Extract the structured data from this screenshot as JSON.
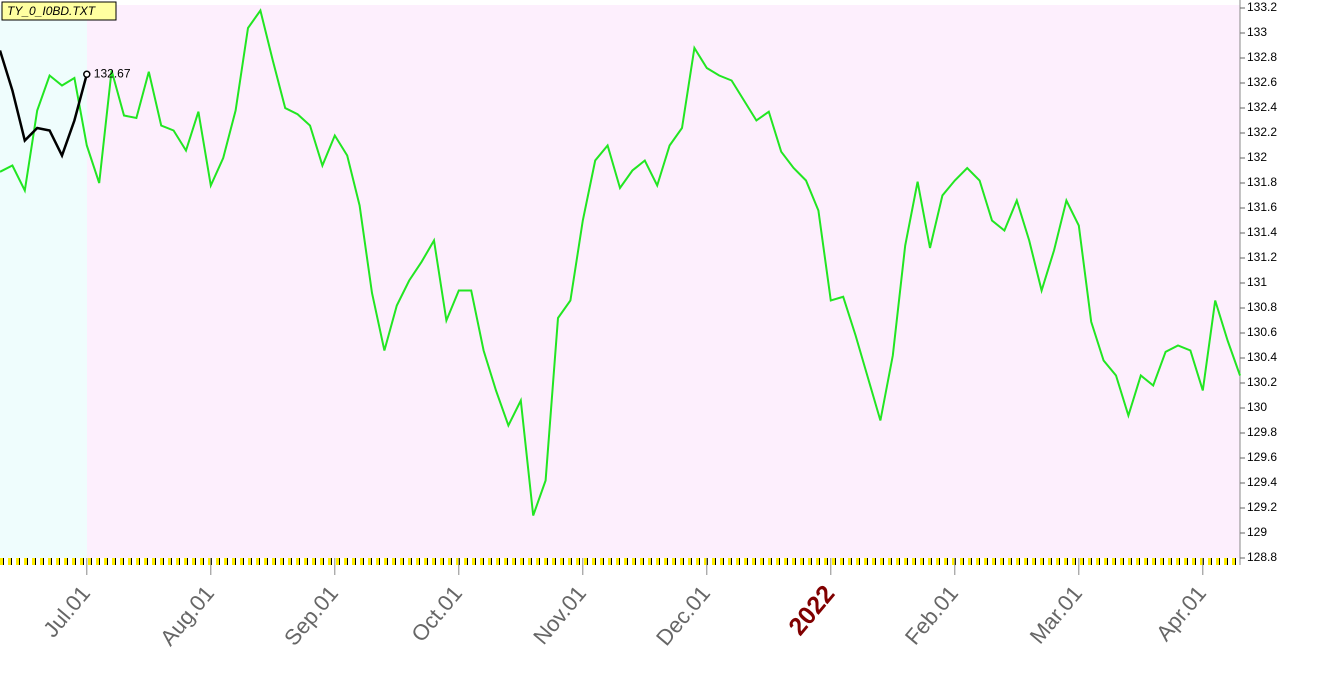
{
  "chart_data": {
    "type": "line",
    "title": "TY_0_I0BD.TXT",
    "categories": [
      null,
      null,
      null,
      null,
      null,
      null,
      null,
      "Jul.01",
      null,
      null,
      null,
      null,
      null,
      null,
      null,
      null,
      null,
      "Aug.01",
      null,
      null,
      null,
      null,
      null,
      null,
      null,
      null,
      null,
      "Sep.01",
      null,
      null,
      null,
      null,
      null,
      null,
      null,
      null,
      null,
      "Oct.01",
      null,
      null,
      null,
      null,
      null,
      null,
      null,
      null,
      null,
      "Nov.01",
      null,
      null,
      null,
      null,
      null,
      null,
      null,
      null,
      null,
      "Dec.01",
      null,
      null,
      null,
      null,
      null,
      null,
      null,
      null,
      null,
      "2022",
      null,
      null,
      null,
      null,
      null,
      null,
      null,
      null,
      null,
      "Feb.01",
      null,
      null,
      null,
      null,
      null,
      null,
      null,
      null,
      null,
      "Mar.01",
      null,
      null,
      null,
      null,
      null,
      null,
      null,
      null,
      null,
      "Apr.01",
      null,
      null,
      null
    ],
    "series": [
      {
        "name": "TY",
        "color": "#22e622",
        "values": [
          131.89,
          131.94,
          131.74,
          132.38,
          132.66,
          132.58,
          132.64,
          132.1,
          131.8,
          132.7,
          132.34,
          132.32,
          132.69,
          132.26,
          132.22,
          132.06,
          132.37,
          131.78,
          132.0,
          132.38,
          133.04,
          133.18,
          132.78,
          132.4,
          132.35,
          132.26,
          131.94,
          132.18,
          132.02,
          131.62,
          130.92,
          130.46,
          130.82,
          131.02,
          131.17,
          131.34,
          130.7,
          130.94,
          130.94,
          130.46,
          130.14,
          129.86,
          130.06,
          129.14,
          129.42,
          130.72,
          130.86,
          131.5,
          131.98,
          132.1,
          131.76,
          131.9,
          131.98,
          131.78,
          132.1,
          132.24,
          132.88,
          132.72,
          132.66,
          132.62,
          132.46,
          132.3,
          132.37,
          132.05,
          131.92,
          131.82,
          131.58,
          130.86,
          130.89,
          130.58,
          130.24,
          129.9,
          130.42,
          131.3,
          131.81,
          131.28,
          131.7,
          131.82,
          131.92,
          131.82,
          131.5,
          131.42,
          131.66,
          131.34,
          130.94,
          131.26,
          131.66,
          131.46,
          130.69,
          130.38,
          130.26,
          129.94,
          130.26,
          130.18,
          130.45,
          130.5,
          130.46,
          130.14,
          130.86,
          130.54,
          130.26
        ]
      },
      {
        "name": "TY_0_I0BD",
        "color": "#000000",
        "values": [
          132.86,
          132.54,
          132.14,
          132.24,
          132.22,
          132.02,
          132.3,
          132.67,
          null,
          null,
          null,
          null,
          null,
          null,
          null,
          null,
          null,
          null,
          null,
          null,
          null,
          null,
          null,
          null,
          null,
          null,
          null,
          null,
          null,
          null,
          null,
          null,
          null,
          null,
          null,
          null,
          null,
          null,
          null,
          null,
          null,
          null,
          null,
          null,
          null,
          null,
          null,
          null,
          null,
          null,
          null,
          null,
          null,
          null,
          null,
          null,
          null,
          null,
          null,
          null,
          null,
          null,
          null,
          null,
          null,
          null,
          null,
          null,
          null,
          null,
          null,
          null,
          null,
          null,
          null,
          null,
          null,
          null,
          null,
          null,
          null,
          null,
          null,
          null,
          null,
          null,
          null,
          null,
          null,
          null,
          null,
          null,
          null,
          null,
          null,
          null,
          null,
          null,
          null,
          null,
          null
        ]
      }
    ],
    "ylim": [
      128.8,
      133.2
    ],
    "yticks": [
      128.8,
      129,
      129.2,
      129.4,
      129.6,
      129.8,
      130,
      130.2,
      130.4,
      130.6,
      130.8,
      131,
      131.2,
      131.4,
      131.6,
      131.8,
      132,
      132.2,
      132.4,
      132.6,
      132.8,
      133,
      133.2
    ]
  }
}
